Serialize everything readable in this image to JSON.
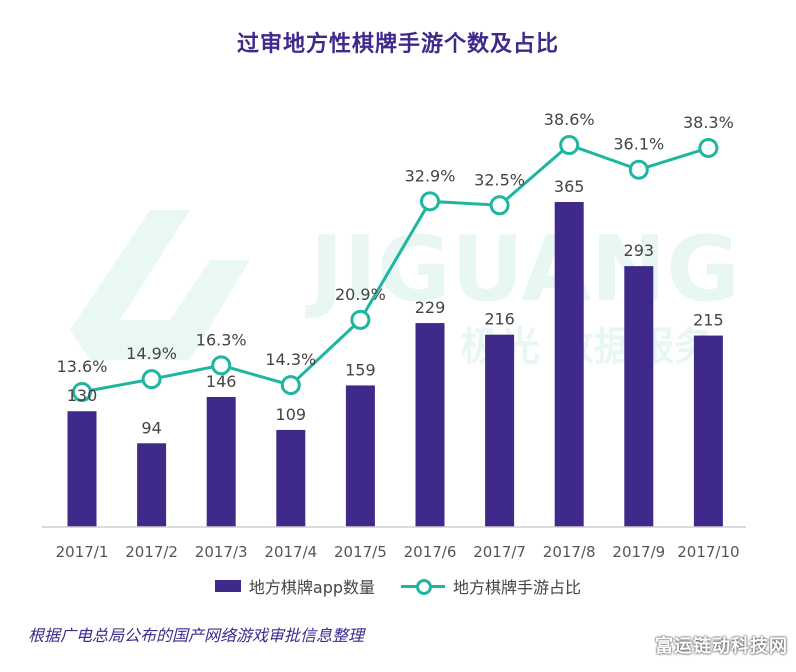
{
  "title": "过审地方性棋牌手游个数及占比",
  "watermark": {
    "brand": "JIGUANG",
    "subtitle": "极光 数据服务"
  },
  "legend": {
    "bar_label": "地方棋牌app数量",
    "line_label": "地方棋牌手游占比"
  },
  "source": "根据广电总局公布的国产网络游戏审批信息整理",
  "badge": "富运链动科技网",
  "colors": {
    "bar": "#3f2a8c",
    "line": "#1fb6a0",
    "title": "#3f2a8c"
  },
  "chart_data": {
    "type": "bar",
    "categories": [
      "2017/1",
      "2017/2",
      "2017/3",
      "2017/4",
      "2017/5",
      "2017/6",
      "2017/7",
      "2017/8",
      "2017/9",
      "2017/10"
    ],
    "series": [
      {
        "name": "地方棋牌app数量",
        "type": "bar",
        "values": [
          130,
          94,
          146,
          109,
          159,
          229,
          216,
          365,
          293,
          215
        ],
        "labels": [
          "130",
          "94",
          "146",
          "109",
          "159",
          "229",
          "216",
          "365",
          "293",
          "215"
        ]
      },
      {
        "name": "地方棋牌手游占比",
        "type": "line",
        "values": [
          13.6,
          14.9,
          16.3,
          14.3,
          20.9,
          32.9,
          32.5,
          38.6,
          36.1,
          38.3
        ],
        "labels": [
          "13.6%",
          "14.9%",
          "16.3%",
          "14.3%",
          "20.9%",
          "32.9%",
          "32.5%",
          "38.6%",
          "36.1%",
          "38.3%"
        ]
      }
    ],
    "ylim_bar": [
      0,
      365
    ],
    "ylim_line": [
      0,
      38.6
    ],
    "grid": false,
    "legend_position": "bottom"
  }
}
